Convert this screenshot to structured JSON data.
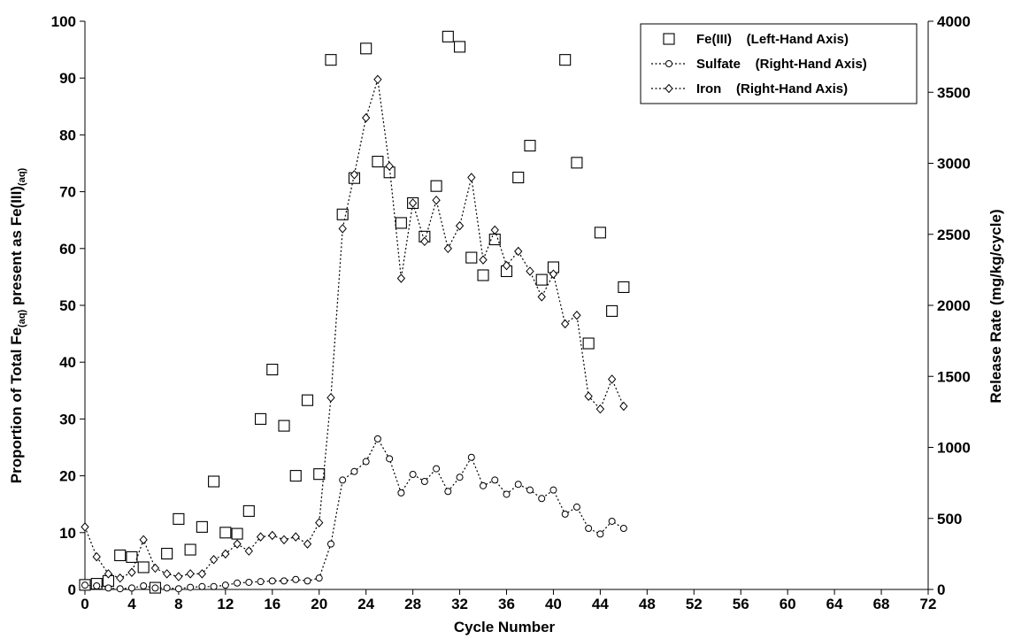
{
  "chart_data": {
    "type": "scatter",
    "xlabel": "Cycle Number",
    "ylabel_left_prefix": "Proportion of Total Fe",
    "ylabel_left_sub1": "(aq)",
    "ylabel_left_mid": " present as Fe(III)",
    "ylabel_left_sub2": "(aq)",
    "ylabel_right": "Release Rate (mg/kg/cycle)",
    "xlim": [
      0,
      72
    ],
    "ylim_left": [
      0,
      100
    ],
    "ylim_right": [
      0,
      4000
    ],
    "x_ticks": [
      "0",
      "4",
      "8",
      "12",
      "16",
      "20",
      "24",
      "28",
      "32",
      "36",
      "40",
      "44",
      "48",
      "52",
      "56",
      "60",
      "64",
      "68",
      "72"
    ],
    "y_left_ticks": [
      "0",
      "10",
      "20",
      "30",
      "40",
      "50",
      "60",
      "70",
      "80",
      "90",
      "100"
    ],
    "y_right_ticks": [
      "0",
      "500",
      "1000",
      "1500",
      "2000",
      "2500",
      "3000",
      "3500",
      "4000"
    ],
    "grid": false,
    "legend_position": "top-right",
    "series": [
      {
        "name": "Fe(III)    (Left-Hand Axis)",
        "axis": "left",
        "marker": "square",
        "line": false,
        "x": [
          0,
          1,
          2,
          3,
          4,
          5,
          6,
          7,
          8,
          9,
          10,
          11,
          12,
          13,
          14,
          15,
          16,
          17,
          18,
          19,
          20,
          21,
          22,
          23,
          24,
          25,
          26,
          27,
          28,
          29,
          30,
          31,
          32,
          33,
          34,
          35,
          36,
          37,
          38,
          39,
          40,
          41,
          42,
          43,
          44,
          45,
          46
        ],
        "y": [
          0.8,
          1.0,
          1.5,
          6.0,
          5.7,
          3.9,
          0.3,
          6.3,
          12.4,
          7.0,
          11.0,
          19.0,
          10.0,
          9.8,
          13.8,
          30.0,
          38.7,
          28.8,
          20.0,
          33.3,
          20.3,
          93.2,
          66.0,
          72.4,
          95.2,
          75.3,
          73.4,
          64.5,
          68.0,
          62.1,
          71.0,
          97.3,
          95.5,
          58.4,
          55.3,
          61.6,
          56.0,
          72.5,
          78.1,
          54.5,
          56.7,
          93.2,
          75.1,
          43.3,
          62.8,
          49.0,
          53.2
        ]
      },
      {
        "name": "Sulfate    (Right-Hand Axis)",
        "axis": "right",
        "marker": "circle",
        "line": true,
        "x": [
          0,
          1,
          2,
          3,
          4,
          5,
          6,
          7,
          8,
          9,
          10,
          11,
          12,
          13,
          14,
          15,
          16,
          17,
          18,
          19,
          20,
          21,
          22,
          23,
          24,
          25,
          26,
          27,
          28,
          29,
          30,
          31,
          32,
          33,
          34,
          35,
          36,
          37,
          38,
          39,
          40,
          41,
          42,
          43,
          44,
          45,
          46
        ],
        "y": [
          30,
          25,
          10,
          5,
          10,
          25,
          10,
          10,
          5,
          15,
          20,
          20,
          30,
          45,
          50,
          55,
          60,
          60,
          70,
          60,
          80,
          320,
          770,
          830,
          900,
          1060,
          920,
          680,
          810,
          760,
          850,
          690,
          790,
          930,
          730,
          770,
          670,
          740,
          700,
          640,
          700,
          530,
          580,
          430,
          390,
          480,
          430
        ]
      },
      {
        "name": "Iron    (Right-Hand Axis)",
        "axis": "right",
        "marker": "diamond",
        "line": true,
        "x": [
          0,
          1,
          2,
          3,
          4,
          5,
          6,
          7,
          8,
          9,
          10,
          11,
          12,
          13,
          14,
          15,
          16,
          17,
          18,
          19,
          20,
          21,
          22,
          23,
          24,
          25,
          26,
          27,
          28,
          29,
          30,
          31,
          32,
          33,
          34,
          35,
          36,
          37,
          38,
          39,
          40,
          41,
          42,
          43,
          44,
          45,
          46
        ],
        "y": [
          440,
          230,
          110,
          80,
          120,
          350,
          150,
          110,
          90,
          110,
          110,
          210,
          250,
          320,
          270,
          370,
          380,
          350,
          370,
          320,
          470,
          1350,
          2540,
          2920,
          3320,
          3590,
          2980,
          2190,
          2720,
          2450,
          2740,
          2400,
          2560,
          2900,
          2320,
          2530,
          2280,
          2380,
          2240,
          2060,
          2220,
          1870,
          1930,
          1360,
          1270,
          1480,
          1290
        ]
      }
    ]
  }
}
